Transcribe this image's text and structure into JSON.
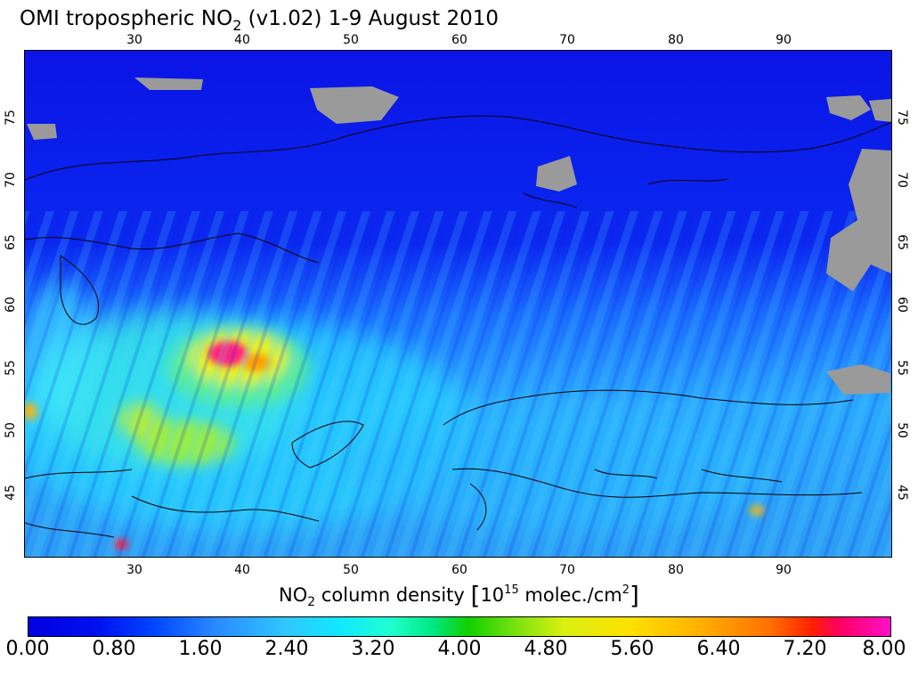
{
  "title": {
    "prefix": "OMI tropospheric NO",
    "sub": "2",
    "suffix": " (v1.02) 1-9 August 2010"
  },
  "map": {
    "lon_ticks": [
      "30",
      "40",
      "50",
      "60",
      "70",
      "80",
      "90"
    ],
    "lat_ticks": [
      "75",
      "70",
      "65",
      "60",
      "55",
      "50",
      "45"
    ],
    "field": "tropospheric NO2 column, Eastern Europe to Central Asia",
    "missing_data_color": "#9a9a9a"
  },
  "colorbar": {
    "title_prefix": "NO",
    "title_sub": "2",
    "title_mid": " column density ",
    "bracket_open": "[",
    "unit_base": "10",
    "unit_exp": "15",
    "unit_mid": " molec./cm",
    "unit_exp2": "2",
    "bracket_close": "]",
    "labels": [
      "0.00",
      "0.80",
      "1.60",
      "2.40",
      "3.20",
      "4.00",
      "4.80",
      "5.60",
      "6.40",
      "7.20",
      "8.00"
    ],
    "colors": [
      "#0000e0",
      "#0040ff",
      "#30c8ff",
      "#20ffd0",
      "#10d000",
      "#d8f010",
      "#ffe000",
      "#ff7000",
      "#ff0060",
      "#ff10c8"
    ]
  }
}
